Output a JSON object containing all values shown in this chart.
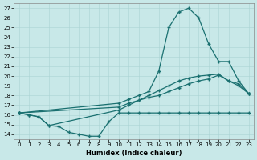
{
  "xlabel": "Humidex (Indice chaleur)",
  "xlim": [
    -0.5,
    23.5
  ],
  "ylim": [
    13.5,
    27.5
  ],
  "yticks": [
    14,
    15,
    16,
    17,
    18,
    19,
    20,
    21,
    22,
    23,
    24,
    25,
    26,
    27
  ],
  "xticks": [
    0,
    1,
    2,
    3,
    4,
    5,
    6,
    7,
    8,
    9,
    10,
    11,
    12,
    13,
    14,
    15,
    16,
    17,
    18,
    19,
    20,
    21,
    22,
    23
  ],
  "bg_color": "#c8e8e8",
  "line_color": "#1a7070",
  "line_width": 0.9,
  "marker": "+",
  "marker_size": 3,
  "curve1_x": [
    0,
    1,
    2,
    3,
    4,
    5,
    6,
    7,
    8,
    9,
    10,
    11,
    12,
    13,
    14,
    15,
    16,
    17,
    18,
    19,
    20,
    21,
    22,
    23
  ],
  "curve1_y": [
    16.2,
    16.0,
    15.8,
    14.9,
    14.8,
    14.2,
    14.0,
    13.8,
    13.8,
    15.3,
    16.2,
    16.2,
    16.2,
    16.2,
    16.2,
    16.2,
    16.2,
    16.2,
    16.2,
    16.2,
    16.2,
    16.2,
    16.2,
    16.2
  ],
  "curve2_x": [
    0,
    1,
    2,
    3,
    10,
    11,
    12,
    13,
    14,
    15,
    16,
    17,
    18,
    19,
    20,
    21,
    22,
    23
  ],
  "curve2_y": [
    16.2,
    16.0,
    15.8,
    14.9,
    16.5,
    17.0,
    17.5,
    18.0,
    18.5,
    19.0,
    19.5,
    19.8,
    20.0,
    20.1,
    20.2,
    19.5,
    19.2,
    18.2
  ],
  "curve3_x": [
    0,
    10,
    11,
    12,
    13,
    14,
    15,
    16,
    17,
    18,
    19,
    20,
    21,
    22,
    23
  ],
  "curve3_y": [
    16.2,
    17.2,
    17.6,
    18.0,
    18.4,
    20.5,
    25.0,
    26.6,
    27.0,
    26.0,
    23.3,
    21.5,
    21.5,
    19.5,
    18.2
  ],
  "curve4_x": [
    0,
    10,
    11,
    12,
    13,
    14,
    15,
    16,
    17,
    18,
    19,
    20,
    21,
    22,
    23
  ],
  "curve4_y": [
    16.2,
    16.8,
    17.2,
    17.5,
    17.8,
    18.0,
    18.4,
    18.8,
    19.2,
    19.5,
    19.7,
    20.1,
    19.5,
    19.0,
    18.2
  ]
}
